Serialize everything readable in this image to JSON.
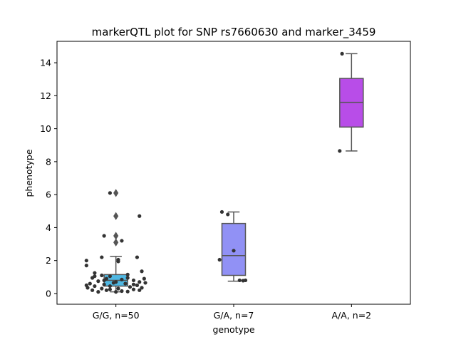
{
  "chart_data": {
    "type": "box",
    "title": "markerQTL plot for SNP rs7660630 and marker_3459",
    "xlabel": "genotype",
    "ylabel": "phenotype",
    "ylim": [
      -0.65,
      15.3
    ],
    "yticks": [
      0,
      2,
      4,
      6,
      8,
      10,
      12,
      14
    ],
    "grid": false,
    "categories": [
      "G/G, n=50",
      "G/A, n=7",
      "A/A, n=2"
    ],
    "boxes": [
      {
        "category": "G/G, n=50",
        "color": "#4fb8e3",
        "q1": 0.45,
        "median": 0.8,
        "q3": 1.15,
        "whisker_low": 0.1,
        "whisker_high": 2.25,
        "outliers": [
          3.1,
          3.5,
          4.7,
          6.1
        ],
        "points": [
          {
            "x": -0.05,
            "y": 6.1
          },
          {
            "x": -0.1,
            "y": 3.5
          },
          {
            "x": 0.2,
            "y": 4.7
          },
          {
            "x": 0.05,
            "y": 3.2
          },
          {
            "x": -0.12,
            "y": 2.2
          },
          {
            "x": 0.18,
            "y": 2.2
          },
          {
            "x": -0.25,
            "y": 2.0
          },
          {
            "x": -0.25,
            "y": 1.7
          },
          {
            "x": 0.02,
            "y": 2.05
          },
          {
            "x": 0.02,
            "y": 1.95
          },
          {
            "x": -0.18,
            "y": 1.25
          },
          {
            "x": 0.22,
            "y": 1.35
          },
          {
            "x": -0.12,
            "y": 1.1
          },
          {
            "x": -0.05,
            "y": 1.05
          },
          {
            "x": 0.1,
            "y": 1.15
          },
          {
            "x": -0.2,
            "y": 0.95
          },
          {
            "x": -0.08,
            "y": 0.9
          },
          {
            "x": 0.05,
            "y": 0.85
          },
          {
            "x": 0.15,
            "y": 0.8
          },
          {
            "x": -0.15,
            "y": 0.75
          },
          {
            "x": 0.0,
            "y": 0.7
          },
          {
            "x": 0.2,
            "y": 0.7
          },
          {
            "x": -0.22,
            "y": 0.6
          },
          {
            "x": -0.1,
            "y": 0.55
          },
          {
            "x": 0.08,
            "y": 0.6
          },
          {
            "x": 0.18,
            "y": 0.5
          },
          {
            "x": -0.18,
            "y": 0.45
          },
          {
            "x": -0.05,
            "y": 0.45
          },
          {
            "x": 0.12,
            "y": 0.4
          },
          {
            "x": 0.22,
            "y": 0.35
          },
          {
            "x": -0.24,
            "y": 0.35
          },
          {
            "x": -0.12,
            "y": 0.3
          },
          {
            "x": 0.02,
            "y": 0.3
          },
          {
            "x": 0.15,
            "y": 0.25
          },
          {
            "x": -0.2,
            "y": 0.2
          },
          {
            "x": -0.08,
            "y": 0.2
          },
          {
            "x": 0.05,
            "y": 0.15
          },
          {
            "x": 0.2,
            "y": 0.2
          },
          {
            "x": -0.15,
            "y": 0.1
          },
          {
            "x": 0.0,
            "y": 0.1
          },
          {
            "x": 0.1,
            "y": 0.12
          },
          {
            "x": -0.02,
            "y": 0.65
          },
          {
            "x": 0.25,
            "y": 0.65
          },
          {
            "x": -0.1,
            "y": 0.8
          },
          {
            "x": 0.1,
            "y": 0.95
          },
          {
            "x": -0.25,
            "y": 0.5
          },
          {
            "x": 0.24,
            "y": 0.9
          },
          {
            "x": -0.05,
            "y": 0.25
          },
          {
            "x": 0.15,
            "y": 0.55
          },
          {
            "x": -0.18,
            "y": 1.05
          }
        ]
      },
      {
        "category": "G/A, n=7",
        "color": "#9191f5",
        "q1": 1.1,
        "median": 2.3,
        "q3": 4.25,
        "whisker_low": 0.75,
        "whisker_high": 4.95,
        "outliers": [],
        "points": [
          {
            "x": -0.1,
            "y": 4.95
          },
          {
            "x": -0.05,
            "y": 4.8
          },
          {
            "x": -0.12,
            "y": 2.05
          },
          {
            "x": 0.0,
            "y": 2.6
          },
          {
            "x": 0.05,
            "y": 0.8
          },
          {
            "x": 0.08,
            "y": 0.78
          },
          {
            "x": 0.1,
            "y": 0.8
          }
        ]
      },
      {
        "category": "A/A, n=2",
        "color": "#b84de8",
        "q1": 10.1,
        "median": 11.6,
        "q3": 13.05,
        "whisker_low": 8.65,
        "whisker_high": 14.55,
        "outliers": [],
        "points": [
          {
            "x": -0.08,
            "y": 14.55
          },
          {
            "x": -0.1,
            "y": 8.65
          }
        ]
      }
    ]
  }
}
